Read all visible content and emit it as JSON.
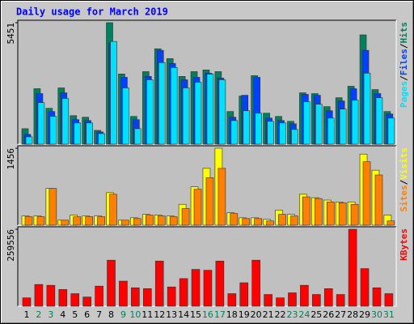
{
  "title": "Daily usage for March 2019",
  "legend_separator": "/",
  "chart_data": [
    {
      "type": "bar",
      "ylim": [
        0,
        5451
      ],
      "yticks": [
        5451
      ],
      "series": [
        {
          "name": "Hits",
          "color": "#00805c",
          "values": [
            695,
            2490,
            1610,
            2525,
            1280,
            1210,
            620,
            5451,
            3150,
            1245,
            3255,
            4280,
            3840,
            3040,
            3255,
            3330,
            3255,
            1465,
            2160,
            3075,
            1390,
            1245,
            1025,
            2305,
            2270,
            1685,
            2085,
            2600,
            4905,
            2450,
            1465
          ]
        },
        {
          "name": "Files",
          "color": "#0040ff",
          "values": [
            440,
            2270,
            1465,
            2305,
            1100,
            1060,
            550,
            4540,
            3000,
            1100,
            3040,
            4210,
            3620,
            2890,
            3000,
            3185,
            2965,
            1210,
            2195,
            3000,
            1170,
            1060,
            915,
            2235,
            2195,
            1500,
            1940,
            2490,
            4210,
            2270,
            1355
          ]
        },
        {
          "name": "Pages",
          "color": "#00e0ff",
          "values": [
            330,
            1865,
            1245,
            2050,
            950,
            950,
            475,
            4610,
            2525,
            695,
            2890,
            3660,
            3440,
            2525,
            2780,
            3145,
            2890,
            1060,
            1500,
            1390,
            1025,
            950,
            660,
            1905,
            1795,
            1170,
            1575,
            1975,
            3185,
            2085,
            1170
          ]
        }
      ]
    },
    {
      "type": "bar",
      "ylim": [
        0,
        1456
      ],
      "yticks": [
        1456
      ],
      "series": [
        {
          "name": "Visits",
          "color": "#ffff00",
          "values": [
            175,
            175,
            695,
            95,
            190,
            175,
            175,
            615,
            95,
            140,
            205,
            190,
            175,
            395,
            725,
            1075,
            1456,
            235,
            140,
            140,
            110,
            285,
            205,
            585,
            520,
            475,
            440,
            440,
            1345,
            1040,
            190
          ]
        },
        {
          "name": "Sites",
          "color": "#ff8000",
          "values": [
            160,
            160,
            695,
            95,
            160,
            160,
            160,
            585,
            95,
            125,
            190,
            175,
            160,
            315,
            680,
            900,
            1075,
            220,
            125,
            125,
            80,
            205,
            175,
            535,
            505,
            440,
            425,
            395,
            1200,
            950,
            80
          ]
        }
      ]
    },
    {
      "type": "bar",
      "ylim": [
        0,
        259556
      ],
      "yticks": [
        259556
      ],
      "categories": [
        "1",
        "2",
        "3",
        "4",
        "5",
        "6",
        "7",
        "8",
        "9",
        "10",
        "11",
        "12",
        "13",
        "14",
        "15",
        "16",
        "17",
        "18",
        "19",
        "20",
        "21",
        "22",
        "23",
        "24",
        "25",
        "26",
        "27",
        "28",
        "29",
        "30",
        "31"
      ],
      "category_colors": [
        "#000000",
        "#00805c",
        "#00805c",
        "#000000",
        "#000000",
        "#000000",
        "#000000",
        "#000000",
        "#00805c",
        "#00805c",
        "#000000",
        "#000000",
        "#000000",
        "#000000",
        "#000000",
        "#00805c",
        "#00805c",
        "#000000",
        "#000000",
        "#000000",
        "#000000",
        "#000000",
        "#00805c",
        "#00805c",
        "#000000",
        "#000000",
        "#000000",
        "#000000",
        "#000000",
        "#00805c",
        "#00805c"
      ],
      "series": [
        {
          "name": "KBytes",
          "color": "#ff0000",
          "values": [
            28200,
            73300,
            70500,
            56400,
            42300,
            31000,
            67700,
            155200,
            84600,
            62100,
            59200,
            152300,
            64900,
            93100,
            124100,
            121300,
            152300,
            42300,
            79000,
            155200,
            39500,
            28200,
            45100,
            70500,
            39500,
            59200,
            39500,
            259556,
            126900,
            62100,
            42300
          ]
        }
      ]
    }
  ]
}
